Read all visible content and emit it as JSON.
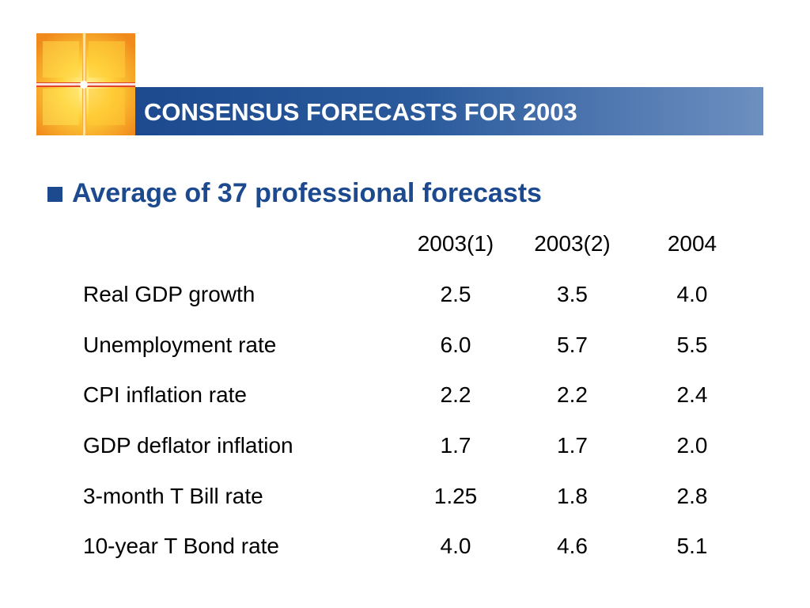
{
  "slide": {
    "title": "CONSENSUS FORECASTS FOR 2003",
    "bullet": "Average of 37 professional forecasts"
  },
  "colors": {
    "title_bar": "#1d4a8f",
    "title_bar_fade": "#6d8fc0",
    "bullet_text": "#1d4a8f",
    "logo_orange": "#f5a623",
    "logo_yellow": "#ffe14a",
    "logo_red": "#d9381e"
  },
  "logo": {
    "icon": "cross-window-logo-icon"
  },
  "table": {
    "headers": [
      "",
      "2003(1)",
      "2003(2)",
      "2004"
    ],
    "rows": [
      {
        "label": "Real GDP growth",
        "values": [
          "2.5",
          "3.5",
          "4.0"
        ]
      },
      {
        "label": "Unemployment rate",
        "values": [
          "6.0",
          "5.7",
          "5.5"
        ]
      },
      {
        "label": "CPI inflation rate",
        "values": [
          "2.2",
          "2.2",
          "2.4"
        ]
      },
      {
        "label": "GDP deflator inflation",
        "values": [
          "1.7",
          "1.7",
          "2.0"
        ]
      },
      {
        "label": "3-month T Bill rate",
        "values": [
          "1.25",
          "1.8",
          "2.8"
        ]
      },
      {
        "label": "10-year T Bond rate",
        "values": [
          "4.0",
          "4.6",
          "5.1"
        ]
      }
    ]
  }
}
